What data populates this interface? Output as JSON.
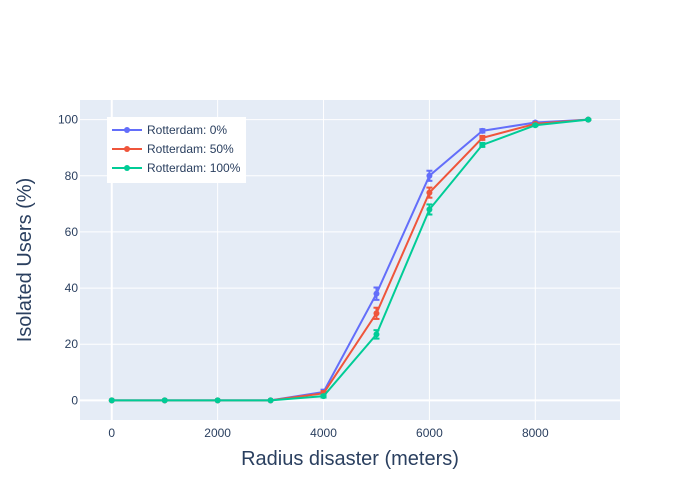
{
  "chart_data": {
    "type": "line",
    "xlabel": "Radius disaster (meters)",
    "ylabel": "Isolated Users (%)",
    "xlim": [
      -600,
      9600
    ],
    "ylim": [
      -7,
      107
    ],
    "x_ticks": [
      0,
      2000,
      4000,
      6000,
      8000
    ],
    "y_ticks": [
      0,
      20,
      40,
      60,
      80,
      100
    ],
    "x_tick_labels": [
      "0",
      "2000",
      "4000",
      "6000",
      "8000"
    ],
    "y_tick_labels": [
      "0",
      "20",
      "40",
      "60",
      "80",
      "100"
    ],
    "grid": true,
    "legend_position": "top-left",
    "x": [
      0,
      1000,
      2000,
      3000,
      4000,
      5000,
      6000,
      7000,
      8000,
      9000
    ],
    "series": [
      {
        "name": "Rotterdam: 0%",
        "color": "#636efa",
        "values": [
          0,
          0,
          0,
          0,
          3,
          38,
          80,
          96,
          99,
          100
        ],
        "errors": [
          0,
          0,
          0,
          0,
          0.8,
          2.2,
          1.8,
          0.6,
          0.3,
          0.1
        ]
      },
      {
        "name": "Rotterdam: 50%",
        "color": "#ef553b",
        "values": [
          0,
          0,
          0,
          0,
          2.5,
          31,
          74,
          93.5,
          98.5,
          100
        ],
        "errors": [
          0,
          0,
          0,
          0,
          0.8,
          2,
          1.8,
          0.7,
          0.3,
          0.1
        ]
      },
      {
        "name": "Rotterdam: 100%",
        "color": "#00cc96",
        "values": [
          0,
          0,
          0,
          0,
          1.5,
          23.5,
          68,
          91,
          98,
          100
        ],
        "errors": [
          0,
          0,
          0,
          0,
          0.5,
          1.5,
          1.8,
          0.7,
          0.3,
          0.1
        ]
      }
    ]
  }
}
